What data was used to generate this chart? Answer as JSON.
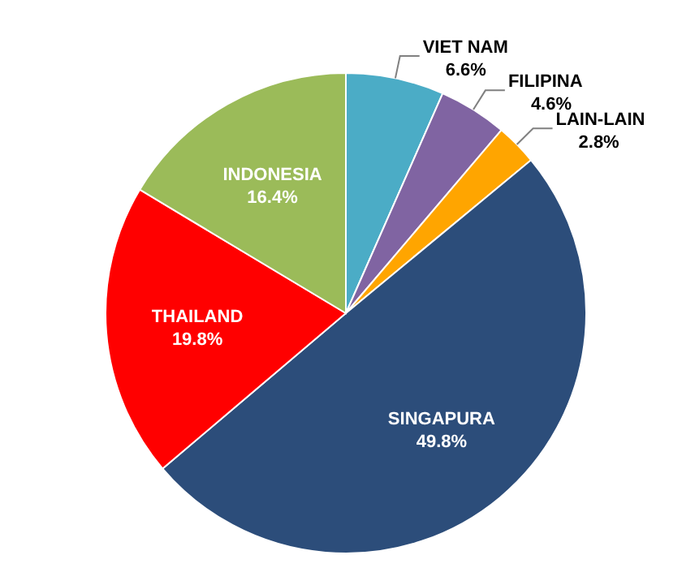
{
  "chart_data": {
    "type": "pie",
    "categories": [
      "VIET NAM",
      "FILIPINA",
      "LAIN-LAIN",
      "SINGAPURA",
      "THAILAND",
      "INDONESIA"
    ],
    "values": [
      6.6,
      4.6,
      2.8,
      49.8,
      19.8,
      16.4
    ],
    "value_labels": [
      "6.6%",
      "4.6%",
      "2.8%",
      "49.8%",
      "19.8%",
      "16.4%"
    ],
    "colors": [
      "#4bacc6",
      "#8064a2",
      "#ffa500",
      "#2c4d7a",
      "#ff0000",
      "#9bbb59"
    ],
    "legend": false
  }
}
